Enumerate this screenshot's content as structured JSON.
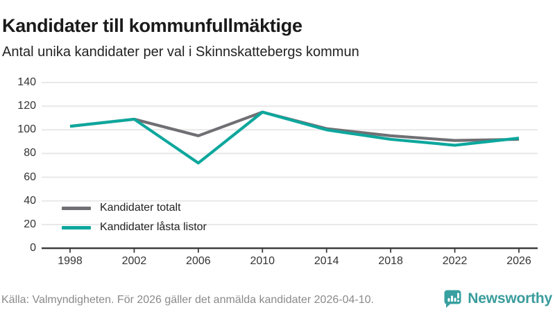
{
  "header": {
    "title": "Kandidater till kommunfullmäktige",
    "subtitle": "Antal unika kandidater per val i Skinnskattebergs kommun"
  },
  "chart_data": {
    "type": "line",
    "x": [
      1998,
      2002,
      2006,
      2010,
      2014,
      2018,
      2022,
      2026
    ],
    "series": [
      {
        "name": "Kandidater totalt",
        "color": "#706f74",
        "values": [
          103,
          109,
          95,
          115,
          101,
          95,
          91,
          92
        ]
      },
      {
        "name": "Kandidater låsta listor",
        "color": "#0da79d",
        "values": [
          103,
          109,
          72,
          115,
          100,
          92,
          87,
          93
        ]
      }
    ],
    "ylim": [
      0,
      140
    ],
    "yticks": [
      0,
      20,
      40,
      60,
      80,
      100,
      120,
      140
    ],
    "grid": true,
    "legend_position": "inside-bottom-left",
    "xlabel": "",
    "ylabel": ""
  },
  "footer": {
    "source": "Källa: Valmyndigheten. För 2026 gäller det anmälda kandidater 2026-04-10.",
    "brand": "Newsworthy"
  },
  "colors": {
    "grid": "#e8e8e8",
    "axis": "#3d3d3d",
    "tick_text": "#333333",
    "source_text": "#8a8a8a",
    "brand_teal": "#3a9c9c"
  }
}
